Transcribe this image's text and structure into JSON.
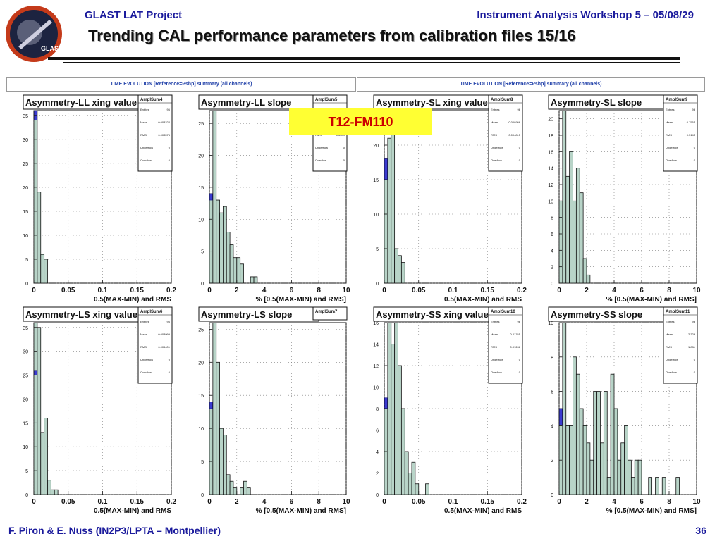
{
  "header": {
    "project": "GLAST LAT Project",
    "workshop": "Instrument Analysis Workshop 5 – 05/08/29",
    "title": "Trending CAL performance parameters from calibration files 15/16"
  },
  "logo": {
    "text": "GLAST",
    "icon": "glast-mission-logo"
  },
  "strips": [
    "TIME EVOLUTION [Reference=Pshp] summary (all channels)",
    "TIME EVOLUTION [Reference=Pshp] summary (all channels)"
  ],
  "badge": "T12-FM110",
  "footer": {
    "authors": "F. Piron & E. Nuss  (IN2P3/LPTA – Montpellier)",
    "page": "36"
  },
  "colors": {
    "header_text": "#1a1a9c",
    "fill": "#b8d4c8",
    "marker": "#3b3bd0",
    "badge_bg": "#ffff33",
    "badge_text": "#cc0000"
  },
  "chart_data": [
    {
      "type": "bar",
      "title": "Asymmetry-LL xing value",
      "xlabel": "0.5(MAX-MIN) and RMS",
      "stats_title": "AmplSum4",
      "stats": [
        [
          "Entries",
          "96"
        ],
        [
          "Mean",
          "0.008322"
        ],
        [
          "RMS",
          "0.003575"
        ],
        [
          "Underflow",
          "0"
        ],
        [
          "Overflow",
          "0"
        ]
      ],
      "xlim": [
        0,
        0.2
      ],
      "ylim": [
        0,
        36
      ],
      "xticks": [
        0,
        0.05,
        0.1,
        0.15,
        0.2
      ],
      "xtick_labels": [
        "0",
        "0.05",
        "0.1",
        "0.15",
        "0.2"
      ],
      "yticks": [
        0,
        5,
        10,
        15,
        20,
        25,
        30,
        35
      ],
      "bins": [
        [
          0,
          0.005,
          36
        ],
        [
          0.005,
          0.01,
          19
        ],
        [
          0.01,
          0.015,
          6
        ],
        [
          0.015,
          0.02,
          5
        ]
      ],
      "marker": [
        0,
        0.005,
        34,
        36
      ]
    },
    {
      "type": "bar",
      "title": "Asymmetry-LL slope",
      "xlabel": "% [0.5(MAX-MIN) and RMS]",
      "stats_title": "AmplSum5",
      "stats": [
        [
          "Entries",
          "96"
        ],
        [
          "Mean",
          "0.8649"
        ],
        [
          "RMS",
          "0.6049"
        ],
        [
          "Underflow",
          "0"
        ],
        [
          "Overflow",
          "0"
        ]
      ],
      "xlim": [
        0,
        10
      ],
      "ylim": [
        0,
        27
      ],
      "xticks": [
        0,
        2,
        4,
        6,
        8,
        10
      ],
      "xtick_labels": [
        "0",
        "2",
        "4",
        "6",
        "8",
        "10"
      ],
      "yticks": [
        0,
        5,
        10,
        15,
        20,
        25
      ],
      "bins": [
        [
          0,
          0.25,
          14
        ],
        [
          0.25,
          0.5,
          27
        ],
        [
          0.5,
          0.75,
          13
        ],
        [
          0.75,
          1,
          11
        ],
        [
          1,
          1.25,
          12
        ],
        [
          1.25,
          1.5,
          8
        ],
        [
          1.5,
          1.75,
          6
        ],
        [
          1.75,
          2,
          4
        ],
        [
          2,
          2.25,
          4
        ],
        [
          2.25,
          2.5,
          3
        ],
        [
          2.5,
          2.75,
          0
        ],
        [
          2.75,
          3,
          0
        ],
        [
          3,
          3.25,
          1
        ],
        [
          3.25,
          3.5,
          1
        ]
      ],
      "marker": [
        0,
        0.25,
        13,
        14
      ]
    },
    {
      "type": "bar",
      "title": "Asymmetry-SL xing value",
      "xlabel": "0.5(MAX-MIN) and RMS",
      "stats_title": "AmplSum8",
      "stats": [
        [
          "Entries",
          "96"
        ],
        [
          "Mean",
          "0.008956"
        ],
        [
          "RMS",
          "0.004815"
        ],
        [
          "Underflow",
          "0"
        ],
        [
          "Overflow",
          "0"
        ]
      ],
      "xlim": [
        0,
        0.2
      ],
      "ylim": [
        0,
        25
      ],
      "xticks": [
        0,
        0.05,
        0.1,
        0.15,
        0.2
      ],
      "xtick_labels": [
        "0",
        "0.05",
        "0.1",
        "0.15",
        "0.2"
      ],
      "yticks": [
        0,
        5,
        10,
        15,
        20
      ],
      "bins": [
        [
          0,
          0.005,
          18
        ],
        [
          0.005,
          0.01,
          21
        ],
        [
          0.01,
          0.015,
          23
        ],
        [
          0.015,
          0.02,
          5
        ],
        [
          0.02,
          0.025,
          4
        ],
        [
          0.025,
          0.03,
          3
        ]
      ],
      "marker": [
        0,
        0.005,
        15,
        18
      ]
    },
    {
      "type": "bar",
      "title": "Asymmetry-SL slope",
      "xlabel": "% [0.5(MAX-MIN) and RMS]",
      "stats_title": "AmplSum9",
      "stats": [
        [
          "Entries",
          "96"
        ],
        [
          "Mean",
          "0.7565"
        ],
        [
          "RMS",
          "0.5145"
        ],
        [
          "Underflow",
          "0"
        ],
        [
          "Overflow",
          "0"
        ]
      ],
      "xlim": [
        0,
        10
      ],
      "ylim": [
        0,
        21
      ],
      "xticks": [
        0,
        2,
        4,
        6,
        8,
        10
      ],
      "xtick_labels": [
        "0",
        "2",
        "4",
        "6",
        "8",
        "10"
      ],
      "yticks": [
        0,
        2,
        4,
        6,
        8,
        10,
        12,
        14,
        16,
        18,
        20
      ],
      "bins": [
        [
          0,
          0.25,
          10
        ],
        [
          0.25,
          0.5,
          21
        ],
        [
          0.5,
          0.75,
          13
        ],
        [
          0.75,
          1,
          16
        ],
        [
          1,
          1.25,
          10
        ],
        [
          1.25,
          1.5,
          14
        ],
        [
          1.5,
          1.75,
          11
        ],
        [
          1.75,
          2,
          3
        ],
        [
          2,
          2.25,
          1
        ]
      ],
      "marker": null
    },
    {
      "type": "bar",
      "title": "Asymmetry-LS xing value",
      "xlabel": "0.5(MAX-MIN) and RMS",
      "stats_title": "AmplSum6",
      "stats": [
        [
          "Entries",
          "96"
        ],
        [
          "Mean",
          "0.008999"
        ],
        [
          "RMS",
          "0.006401"
        ],
        [
          "Underflow",
          "0"
        ],
        [
          "Overflow",
          "0"
        ]
      ],
      "xlim": [
        0,
        0.2
      ],
      "ylim": [
        0,
        36
      ],
      "xticks": [
        0,
        0.05,
        0.1,
        0.15,
        0.2
      ],
      "xtick_labels": [
        "0",
        "0.05",
        "0.1",
        "0.15",
        "0.2"
      ],
      "yticks": [
        0,
        5,
        10,
        15,
        20,
        25,
        30,
        35
      ],
      "bins": [
        [
          0,
          0.005,
          36
        ],
        [
          0.005,
          0.01,
          35
        ],
        [
          0.01,
          0.015,
          13
        ],
        [
          0.015,
          0.02,
          16
        ],
        [
          0.02,
          0.025,
          3
        ],
        [
          0.025,
          0.03,
          1
        ],
        [
          0.03,
          0.035,
          1
        ]
      ],
      "marker": [
        0,
        0.005,
        25,
        26
      ]
    },
    {
      "type": "bar",
      "title": "Asymmetry-LS slope",
      "xlabel": "% [0.5(MAX-MIN) and RMS]",
      "stats_title": "AmplSum7",
      "stats": [],
      "xlim": [
        0,
        10
      ],
      "ylim": [
        0,
        26
      ],
      "xticks": [
        0,
        2,
        4,
        6,
        8,
        10
      ],
      "xtick_labels": [
        "0",
        "2",
        "4",
        "6",
        "8",
        "10"
      ],
      "yticks": [
        0,
        5,
        10,
        15,
        20,
        25
      ],
      "bins": [
        [
          0,
          0.25,
          14
        ],
        [
          0.25,
          0.5,
          26
        ],
        [
          0.5,
          0.75,
          20
        ],
        [
          0.75,
          1,
          10
        ],
        [
          1,
          1.25,
          9
        ],
        [
          1.25,
          1.5,
          3
        ],
        [
          1.5,
          1.75,
          2
        ],
        [
          1.75,
          2,
          1
        ],
        [
          2,
          2.25,
          0
        ],
        [
          2.25,
          2.5,
          1
        ],
        [
          2.5,
          2.75,
          2
        ],
        [
          2.75,
          3,
          1
        ]
      ],
      "marker": [
        0,
        0.25,
        13,
        14
      ]
    },
    {
      "type": "bar",
      "title": "Asymmetry-SS xing value",
      "xlabel": "0.5(MAX-MIN) and RMS",
      "stats_title": "AmplSum10",
      "stats": [
        [
          "Entries",
          "96"
        ],
        [
          "Mean",
          "0.01765"
        ],
        [
          "RMS",
          "0.01246"
        ],
        [
          "Underflow",
          "0"
        ],
        [
          "Overflow",
          "0"
        ]
      ],
      "xlim": [
        0,
        0.2
      ],
      "ylim": [
        0,
        16
      ],
      "xticks": [
        0,
        0.05,
        0.1,
        0.15,
        0.2
      ],
      "xtick_labels": [
        "0",
        "0.05",
        "0.1",
        "0.15",
        "0.2"
      ],
      "yticks": [
        0,
        2,
        4,
        6,
        8,
        10,
        12,
        14,
        16
      ],
      "bins": [
        [
          0,
          0.005,
          8
        ],
        [
          0.005,
          0.01,
          16
        ],
        [
          0.01,
          0.015,
          14
        ],
        [
          0.015,
          0.02,
          16
        ],
        [
          0.02,
          0.025,
          12
        ],
        [
          0.025,
          0.03,
          8
        ],
        [
          0.03,
          0.035,
          4
        ],
        [
          0.035,
          0.04,
          2
        ],
        [
          0.04,
          0.045,
          3
        ],
        [
          0.045,
          0.05,
          1
        ],
        [
          0.05,
          0.055,
          0
        ],
        [
          0.055,
          0.06,
          0
        ],
        [
          0.06,
          0.065,
          1
        ]
      ],
      "marker": [
        0,
        0.005,
        8,
        9
      ]
    },
    {
      "type": "bar",
      "title": "Asymmetry-SS slope",
      "xlabel": "% [0.5(MAX-MIN) and RMS]",
      "stats_title": "AmplSum11",
      "stats": [
        [
          "Entries",
          "96"
        ],
        [
          "Mean",
          "2.326"
        ],
        [
          "RMS",
          "1.884"
        ],
        [
          "Underflow",
          "0"
        ],
        [
          "Overflow",
          "0"
        ]
      ],
      "xlim": [
        0,
        10
      ],
      "ylim": [
        0,
        10
      ],
      "xticks": [
        0,
        2,
        4,
        6,
        8,
        10
      ],
      "xtick_labels": [
        "0",
        "2",
        "4",
        "6",
        "8",
        "10"
      ],
      "yticks": [
        0,
        2,
        4,
        6,
        8,
        10
      ],
      "bins": [
        [
          0,
          0.25,
          5
        ],
        [
          0.25,
          0.5,
          10
        ],
        [
          0.5,
          0.75,
          4
        ],
        [
          0.75,
          1,
          4
        ],
        [
          1,
          1.25,
          8
        ],
        [
          1.25,
          1.5,
          7
        ],
        [
          1.5,
          1.75,
          5
        ],
        [
          1.75,
          2,
          4
        ],
        [
          2,
          2.25,
          3
        ],
        [
          2.25,
          2.5,
          2
        ],
        [
          2.5,
          2.75,
          6
        ],
        [
          2.75,
          3,
          6
        ],
        [
          3,
          3.25,
          3
        ],
        [
          3.25,
          3.5,
          6
        ],
        [
          3.5,
          3.75,
          1
        ],
        [
          3.75,
          4,
          7
        ],
        [
          4,
          4.25,
          5
        ],
        [
          4.25,
          4.5,
          2
        ],
        [
          4.5,
          4.75,
          3
        ],
        [
          4.75,
          5,
          4
        ],
        [
          5,
          5.25,
          2
        ],
        [
          5.25,
          5.5,
          1
        ],
        [
          5.5,
          5.75,
          2
        ],
        [
          5.75,
          6,
          2
        ],
        [
          6,
          6.5,
          0
        ],
        [
          6.5,
          6.75,
          1
        ],
        [
          6.75,
          7,
          0
        ],
        [
          7,
          7.25,
          1
        ],
        [
          7.25,
          7.5,
          0
        ],
        [
          7.5,
          7.75,
          1
        ],
        [
          7.75,
          8.5,
          0
        ],
        [
          8.5,
          8.75,
          1
        ]
      ],
      "marker": [
        0,
        0.25,
        4,
        5
      ]
    }
  ]
}
